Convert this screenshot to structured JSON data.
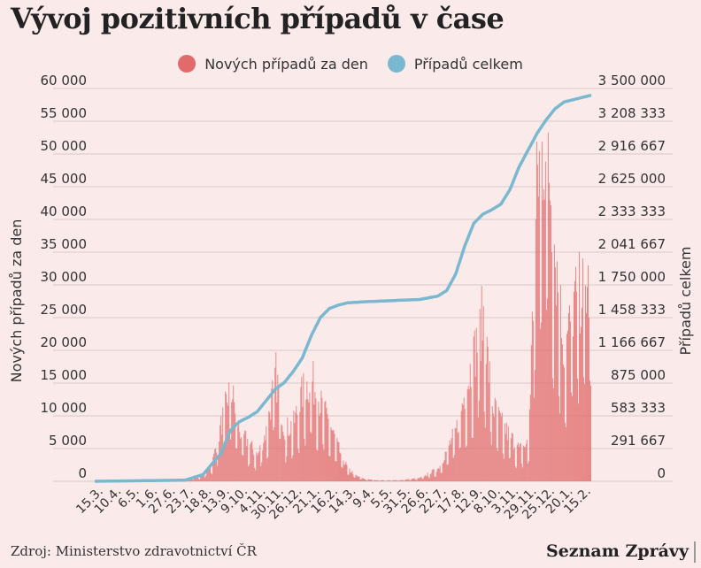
{
  "title": "Vývoj pozitivních případů v čase",
  "source": "Zdroj: Ministerstvo zdravotnictví ČR",
  "brand": "Seznam Zprávy",
  "colors": {
    "daily": "#e16b6b",
    "total": "#7ab8d0",
    "background": "#fbeaea",
    "grid": "#d9c8c8"
  },
  "chart_data": {
    "type": "bar",
    "series": [
      {
        "name": "Nových případů za den",
        "type": "bar",
        "axis": "left",
        "color": "#e16b6b",
        "keypoints_week_index": [
          0,
          20,
          24,
          26,
          28,
          30,
          32,
          34,
          36,
          38,
          40,
          42,
          44,
          46,
          48,
          50,
          52,
          54,
          56,
          58,
          60,
          62,
          64,
          66,
          68,
          72,
          76,
          80,
          84,
          86,
          88,
          90,
          92,
          94,
          96,
          98,
          100,
          102,
          104,
          106,
          108,
          110
        ],
        "keypoints_values": [
          0,
          200,
          1000,
          3000,
          9000,
          15000,
          8000,
          6000,
          4000,
          8000,
          17000,
          8000,
          9000,
          14000,
          16000,
          12000,
          9000,
          5000,
          2000,
          800,
          300,
          200,
          150,
          150,
          200,
          500,
          2000,
          8000,
          20000,
          26000,
          12000,
          9000,
          7000,
          5000,
          6000,
          48000,
          55000,
          35000,
          20000,
          28000,
          30000,
          30000
        ]
      },
      {
        "name": "Případů celkem",
        "type": "line",
        "axis": "right",
        "color": "#7ab8d0",
        "keypoints_week_index": [
          0,
          20,
          24,
          28,
          30,
          32,
          34,
          36,
          38,
          40,
          42,
          44,
          46,
          48,
          50,
          52,
          54,
          56,
          60,
          66,
          72,
          76,
          78,
          80,
          82,
          84,
          86,
          88,
          90,
          92,
          94,
          96,
          98,
          100,
          102,
          104,
          106,
          108,
          110
        ],
        "keypoints_values": [
          0,
          10000,
          60000,
          250000,
          450000,
          530000,
          570000,
          620000,
          720000,
          820000,
          880000,
          980000,
          1100000,
          1300000,
          1460000,
          1540000,
          1570000,
          1590000,
          1600000,
          1610000,
          1620000,
          1650000,
          1700000,
          1850000,
          2100000,
          2300000,
          2380000,
          2420000,
          2470000,
          2600000,
          2800000,
          2950000,
          3100000,
          3220000,
          3320000,
          3380000,
          3400000,
          3420000,
          3440000
        ]
      }
    ],
    "x_tick_labels": [
      "15.3.",
      "10.4.",
      "6.5.",
      "1.6.",
      "27.6.",
      "23.7.",
      "18.8.",
      "13.9.",
      "9.10.",
      "4.11.",
      "30.11.",
      "26.12.",
      "21.1.",
      "16.2.",
      "14.3.",
      "9.4.",
      "5.5.",
      "31.5.",
      "26.6.",
      "22.7.",
      "17.8.",
      "12.9.",
      "8.10.",
      "3.11.",
      "29.11.",
      "25.12.",
      "20.1.",
      "15.2."
    ],
    "ylabel": "Nových případů za den",
    "ylabel_right": "Případů celkem",
    "ylim": [
      0,
      60000
    ],
    "ylim_right": [
      0,
      3500000
    ],
    "y_ticks": [
      "0",
      "5 000",
      "10 000",
      "15 000",
      "20 000",
      "25 000",
      "30 000",
      "35 000",
      "40 000",
      "45 000",
      "50 000",
      "55 000",
      "60 000"
    ],
    "y_ticks_right": [
      "0",
      "291 667",
      "583 333",
      "875 000",
      "1 166 667",
      "1 458 333",
      "1 750 000",
      "2 041 667",
      "2 333 333",
      "2 625 000",
      "2 916 667",
      "3 208 333",
      "3 500 000"
    ],
    "legend_position": "top-center",
    "grid": true
  }
}
